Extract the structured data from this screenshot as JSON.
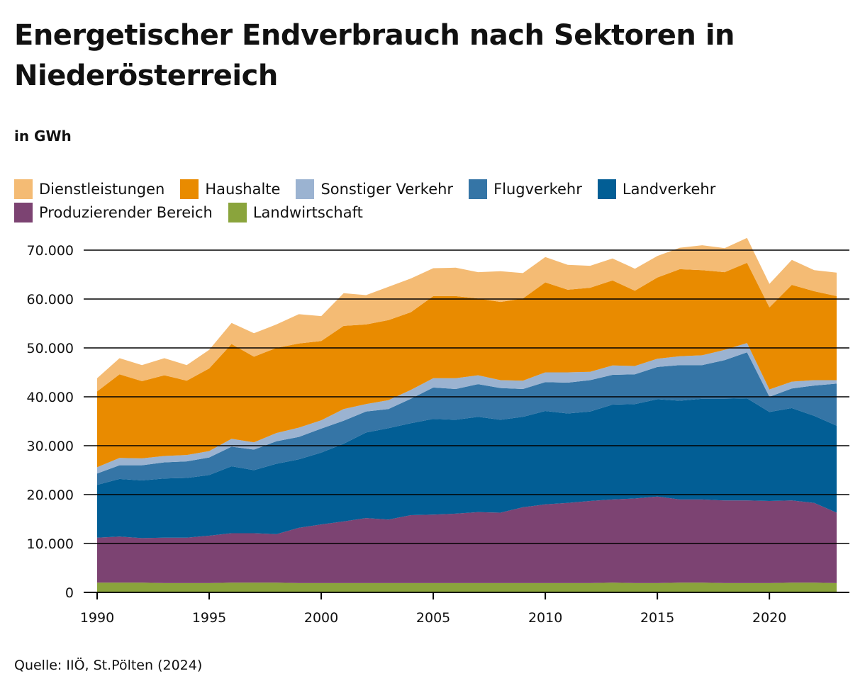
{
  "header": {
    "title": "Energetischer Endverbrauch nach Sektoren in Niederösterreich",
    "unit": "in GWh"
  },
  "source": "Quelle: IIÖ, St.Pölten (2024)",
  "legend": [
    {
      "name": "Dienstleistungen",
      "color": "#f4bb74"
    },
    {
      "name": "Haushalte",
      "color": "#e98b00"
    },
    {
      "name": "Sonstiger Verkehr",
      "color": "#9bb3d1"
    },
    {
      "name": "Flugverkehr",
      "color": "#3575a6"
    },
    {
      "name": "Landverkehr",
      "color": "#025e95"
    },
    {
      "name": "Produzierender Bereich",
      "color": "#7c4372"
    },
    {
      "name": "Landwirtschaft",
      "color": "#8aa43c"
    }
  ],
  "chart_data": {
    "type": "area",
    "stacked": true,
    "title": "Energetischer Endverbrauch nach Sektoren in Niederösterreich",
    "ylabel": "in GWh",
    "xlabel": "",
    "ylim": [
      0,
      70000
    ],
    "yticks": [
      0,
      10000,
      20000,
      30000,
      40000,
      50000,
      60000,
      70000
    ],
    "ytick_labels": [
      "0",
      "10.000",
      "20.000",
      "30.000",
      "40.000",
      "50.000",
      "60.000",
      "70.000"
    ],
    "xticks": [
      1990,
      1995,
      2000,
      2005,
      2010,
      2015,
      2020
    ],
    "xtick_labels": [
      "1990",
      "1995",
      "2000",
      "2005",
      "2010",
      "2015",
      "2020"
    ],
    "xlim": [
      1990,
      2023
    ],
    "grid": "horizontal",
    "legend_position": "top",
    "x": [
      1990,
      1991,
      1992,
      1993,
      1994,
      1995,
      1996,
      1997,
      1998,
      1999,
      2000,
      2001,
      2002,
      2003,
      2004,
      2005,
      2006,
      2007,
      2008,
      2009,
      2010,
      2011,
      2012,
      2013,
      2014,
      2015,
      2016,
      2017,
      2018,
      2019,
      2020,
      2021,
      2022,
      2023
    ],
    "series": [
      {
        "name": "Landwirtschaft",
        "values": [
          2000,
          2000,
          2000,
          1900,
          1900,
          1900,
          2000,
          2000,
          2000,
          1900,
          1900,
          1900,
          1900,
          1900,
          1900,
          1900,
          1900,
          1900,
          1900,
          1900,
          1900,
          1900,
          1900,
          2000,
          1900,
          1900,
          2000,
          2000,
          1900,
          1900,
          1900,
          2000,
          2000,
          1900
        ]
      },
      {
        "name": "Produzierender Bereich",
        "values": [
          9200,
          9400,
          9100,
          9300,
          9300,
          9700,
          10100,
          10100,
          9900,
          11300,
          12000,
          12600,
          13300,
          13000,
          13900,
          14000,
          14200,
          14500,
          14400,
          15500,
          16100,
          16400,
          16800,
          17000,
          17300,
          17700,
          17000,
          17000,
          16900,
          16900,
          16800,
          16800,
          16300,
          14400
        ]
      },
      {
        "name": "Landverkehr",
        "values": [
          10800,
          11800,
          11800,
          12100,
          12200,
          12400,
          13700,
          12900,
          14400,
          14000,
          14700,
          15900,
          17500,
          18700,
          18800,
          19600,
          19200,
          19500,
          19000,
          18500,
          19100,
          18300,
          18300,
          19400,
          19300,
          19900,
          20200,
          20600,
          20800,
          20900,
          18200,
          18900,
          17800,
          17800
        ]
      },
      {
        "name": "Flugverkehr",
        "values": [
          2300,
          2800,
          3100,
          3300,
          3400,
          3600,
          4000,
          4200,
          4600,
          4600,
          4900,
          4700,
          4300,
          3900,
          5000,
          6400,
          6300,
          6700,
          6500,
          5700,
          5900,
          6300,
          6400,
          6100,
          6100,
          6600,
          7300,
          6900,
          7900,
          9400,
          3100,
          4000,
          6200,
          8600
        ]
      },
      {
        "name": "Sonstiger Verkehr",
        "values": [
          1300,
          1500,
          1400,
          1300,
          1300,
          1300,
          1600,
          1500,
          1700,
          1900,
          1700,
          2400,
          1500,
          1800,
          1800,
          1900,
          2200,
          1800,
          1600,
          1700,
          2000,
          2100,
          1700,
          1900,
          1700,
          1700,
          1800,
          2000,
          2100,
          1900,
          1500,
          1400,
          1100,
          700
        ]
      },
      {
        "name": "Haushalte",
        "values": [
          15500,
          17100,
          15800,
          16500,
          15200,
          16900,
          19400,
          17500,
          17400,
          17200,
          16200,
          17000,
          16300,
          16400,
          15900,
          16800,
          16800,
          15700,
          16000,
          16800,
          18400,
          16900,
          17200,
          17400,
          15400,
          16600,
          17800,
          17400,
          15900,
          16400,
          16800,
          19800,
          18200,
          17200
        ]
      },
      {
        "name": "Dienstleistungen",
        "values": [
          2700,
          3300,
          3300,
          3500,
          3200,
          3800,
          4300,
          4800,
          4800,
          6000,
          5100,
          6700,
          6000,
          6800,
          6900,
          5700,
          5800,
          5400,
          6300,
          5200,
          5200,
          5100,
          4500,
          4500,
          4500,
          4400,
          4400,
          5100,
          4900,
          5100,
          4800,
          5100,
          4300,
          4800
        ]
      }
    ]
  }
}
